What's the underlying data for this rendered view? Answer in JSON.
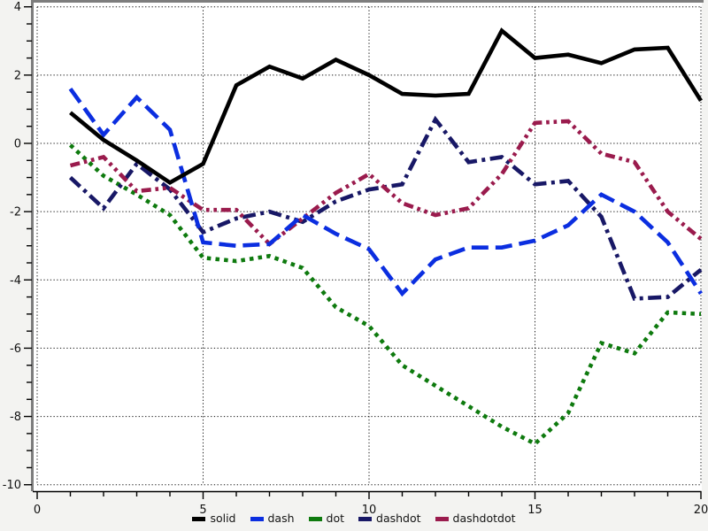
{
  "chart_data": {
    "type": "line",
    "title": "",
    "xlabel": "",
    "ylabel": "",
    "xlim": [
      0,
      20
    ],
    "ylim": [
      -10,
      4
    ],
    "grid": "major-dotted",
    "legend_position": "bottom-center",
    "x": [
      1,
      2,
      3,
      4,
      5,
      6,
      7,
      8,
      9,
      10,
      11,
      12,
      13,
      14,
      15,
      16,
      17,
      18,
      19,
      20
    ],
    "x_major_ticks": [
      0,
      5,
      10,
      15,
      20
    ],
    "x_minor_step": 1,
    "y_major_ticks": [
      4,
      2,
      0,
      -2,
      -4,
      -6,
      -8,
      -10
    ],
    "y_minor_step": 0.5,
    "series": [
      {
        "name": "solid",
        "line_style": "solid",
        "color": "#000000",
        "values": [
          0.9,
          0.1,
          -0.5,
          -1.15,
          -0.6,
          1.7,
          2.25,
          1.9,
          2.45,
          2.0,
          1.45,
          1.4,
          1.45,
          3.3,
          2.5,
          2.6,
          2.35,
          2.75,
          2.8,
          1.25
        ]
      },
      {
        "name": "dash",
        "line_style": "dash",
        "color": "#0b2ee0",
        "values": [
          1.6,
          0.25,
          1.35,
          0.4,
          -2.9,
          -3.0,
          -2.95,
          -2.1,
          -2.65,
          -3.1,
          -4.4,
          -3.4,
          -3.05,
          -3.05,
          -2.85,
          -2.4,
          -1.5,
          -2.0,
          -2.9,
          -4.4
        ]
      },
      {
        "name": "dot",
        "line_style": "dot",
        "color": "#0e7a0e",
        "values": [
          -0.05,
          -0.95,
          -1.5,
          -2.1,
          -3.35,
          -3.45,
          -3.3,
          -3.65,
          -4.8,
          -5.35,
          -6.5,
          -7.1,
          -7.7,
          -8.3,
          -8.8,
          -7.9,
          -5.85,
          -6.15,
          -4.95,
          -5.0
        ]
      },
      {
        "name": "dashdot",
        "line_style": "dashdot",
        "color": "#181866",
        "values": [
          -1.0,
          -1.9,
          -0.6,
          -1.35,
          -2.6,
          -2.2,
          -2.0,
          -2.3,
          -1.7,
          -1.35,
          -1.2,
          0.7,
          -0.55,
          -0.4,
          -1.2,
          -1.1,
          -2.15,
          -4.55,
          -4.5,
          -3.7
        ]
      },
      {
        "name": "dashdotdot",
        "line_style": "dashdotdot",
        "color": "#9a1b4d",
        "values": [
          -0.65,
          -0.4,
          -1.4,
          -1.3,
          -1.95,
          -1.95,
          -2.95,
          -2.2,
          -1.45,
          -0.9,
          -1.75,
          -2.1,
          -1.9,
          -0.9,
          0.6,
          0.65,
          -0.3,
          -0.55,
          -2.0,
          -2.8
        ]
      }
    ]
  },
  "axes": {
    "x_tick_labels": [
      "0",
      "5",
      "10",
      "15",
      "20"
    ],
    "y_tick_labels": [
      "4",
      "2",
      "0",
      "-2",
      "-4",
      "-6",
      "-8",
      "-10"
    ]
  },
  "legend": {
    "items": [
      {
        "label": "solid",
        "color": "#000000"
      },
      {
        "label": "dash",
        "color": "#0b2ee0"
      },
      {
        "label": "dot",
        "color": "#0e7a0e"
      },
      {
        "label": "dashdot",
        "color": "#181866"
      },
      {
        "label": "dashdotdot",
        "color": "#9a1b4d"
      }
    ]
  },
  "colors": {
    "page_background": "#f3f3f1",
    "plot_background": "#ffffff",
    "frame": "#7d7d7d",
    "grid": "#000000",
    "axis": "#000000",
    "tick_label": "#111111"
  }
}
